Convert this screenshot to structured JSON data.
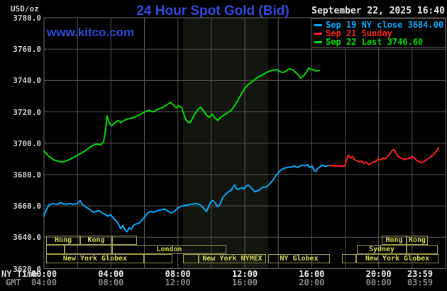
{
  "header": {
    "title": "24 Hour Spot Gold (Bid)",
    "unit_label": "USD/oz",
    "datetime": "September 22, 2025 16:40",
    "watermark": "www.kitco.com"
  },
  "chart_data": {
    "type": "line",
    "title": "24 Hour Spot Gold (Bid)",
    "ny_close": 3684.0,
    "last": 3746.6,
    "x_axis": {
      "label_ny": "NY Time",
      "label_gmt": "GMT",
      "range_hours": [
        0,
        24
      ],
      "ticks": [
        {
          "h": 0,
          "ny": "00:00",
          "gmt": "04:00"
        },
        {
          "h": 4,
          "ny": "04:00",
          "gmt": "08:00"
        },
        {
          "h": 8,
          "ny": "08:00",
          "gmt": "12:00"
        },
        {
          "h": 12,
          "ny": "12:00",
          "gmt": "16:00"
        },
        {
          "h": 16,
          "ny": "16:00",
          "gmt": "20:00"
        },
        {
          "h": 20,
          "ny": "20:00",
          "gmt": "00:00"
        },
        {
          "h": 24,
          "ny": "23:59",
          "gmt": "03:59"
        }
      ]
    },
    "y_axis": {
      "min": 3620,
      "max": 3780,
      "step": 20,
      "grid": true
    },
    "legend_position": "top-right",
    "legend": [
      {
        "label": "Sep 19 NY close 3684.00",
        "color": "#00aaff"
      },
      {
        "label": "Sep 21 Sunday",
        "color": "#ff2020"
      },
      {
        "label": "Sep 22 Last 3746.60",
        "color": "#00dc00"
      }
    ],
    "series": [
      {
        "id": "sep19-ny-close",
        "name": "Sep 19",
        "color": "#00aaff",
        "points": [
          [
            0,
            3653.5
          ],
          [
            0.13,
            3657.5
          ],
          [
            0.3,
            3660.5
          ],
          [
            0.51,
            3661.5
          ],
          [
            0.76,
            3661
          ],
          [
            1.02,
            3662
          ],
          [
            1.27,
            3661
          ],
          [
            1.53,
            3661.5
          ],
          [
            1.78,
            3661
          ],
          [
            1.99,
            3661.5
          ],
          [
            2.16,
            3663.5
          ],
          [
            2.29,
            3661
          ],
          [
            2.46,
            3659.5
          ],
          [
            2.63,
            3658.5
          ],
          [
            2.8,
            3657
          ],
          [
            2.97,
            3656
          ],
          [
            3.14,
            3656.5
          ],
          [
            3.31,
            3657
          ],
          [
            3.48,
            3655.5
          ],
          [
            3.65,
            3654.5
          ],
          [
            3.82,
            3653.5
          ],
          [
            3.99,
            3654.5
          ],
          [
            4.16,
            3652
          ],
          [
            4.32,
            3650.5
          ],
          [
            4.45,
            3648.5
          ],
          [
            4.58,
            3645.5
          ],
          [
            4.71,
            3647.5
          ],
          [
            4.83,
            3645
          ],
          [
            4.96,
            3643.5
          ],
          [
            5.09,
            3646
          ],
          [
            5.22,
            3645
          ],
          [
            5.34,
            3647.5
          ],
          [
            5.51,
            3648.5
          ],
          [
            5.68,
            3649
          ],
          [
            5.85,
            3651
          ],
          [
            6.02,
            3653
          ],
          [
            6.19,
            3655.5
          ],
          [
            6.36,
            3656.5
          ],
          [
            6.57,
            3656
          ],
          [
            6.78,
            3657
          ],
          [
            7,
            3657.5
          ],
          [
            7.21,
            3658
          ],
          [
            7.42,
            3656.5
          ],
          [
            7.63,
            3655.5
          ],
          [
            7.84,
            3657
          ],
          [
            8.06,
            3659
          ],
          [
            8.27,
            3660
          ],
          [
            8.52,
            3660.5
          ],
          [
            8.82,
            3661
          ],
          [
            9.12,
            3661.5
          ],
          [
            9.37,
            3660.5
          ],
          [
            9.58,
            3658
          ],
          [
            9.71,
            3656.5
          ],
          [
            9.84,
            3659.5
          ],
          [
            9.96,
            3662.5
          ],
          [
            10.09,
            3663.5
          ],
          [
            10.22,
            3662
          ],
          [
            10.35,
            3660
          ],
          [
            10.43,
            3659.5
          ],
          [
            10.56,
            3662
          ],
          [
            10.69,
            3665.5
          ],
          [
            10.86,
            3667.5
          ],
          [
            11.02,
            3669
          ],
          [
            11.19,
            3670
          ],
          [
            11.32,
            3672.5
          ],
          [
            11.4,
            3673.3
          ],
          [
            11.49,
            3671
          ],
          [
            11.57,
            3670.5
          ],
          [
            11.7,
            3671
          ],
          [
            11.83,
            3671.5
          ],
          [
            11.96,
            3671
          ],
          [
            12.08,
            3672.5
          ],
          [
            12.21,
            3673.3
          ],
          [
            12.34,
            3672
          ],
          [
            12.47,
            3670.5
          ],
          [
            12.59,
            3669
          ],
          [
            12.72,
            3669.5
          ],
          [
            12.85,
            3670
          ],
          [
            12.97,
            3671
          ],
          [
            13.1,
            3672
          ],
          [
            13.27,
            3672
          ],
          [
            13.44,
            3673.5
          ],
          [
            13.61,
            3675.5
          ],
          [
            13.78,
            3678
          ],
          [
            13.95,
            3680.5
          ],
          [
            14.12,
            3682.5
          ],
          [
            14.33,
            3684
          ],
          [
            14.54,
            3684.5
          ],
          [
            14.76,
            3684.8
          ],
          [
            14.97,
            3685.5
          ],
          [
            15.14,
            3684.5
          ],
          [
            15.31,
            3685.5
          ],
          [
            15.48,
            3686
          ],
          [
            15.61,
            3685.5
          ],
          [
            15.73,
            3686.3
          ],
          [
            15.9,
            3684.5
          ],
          [
            16.03,
            3685.5
          ],
          [
            16.11,
            3683
          ],
          [
            16.24,
            3682
          ],
          [
            16.37,
            3684
          ],
          [
            16.5,
            3685
          ],
          [
            16.62,
            3686
          ],
          [
            16.79,
            3685.3
          ],
          [
            16.92,
            3685.5
          ],
          [
            17.05,
            3685.8
          ]
        ]
      },
      {
        "id": "sep21-sunday",
        "name": "Sep 21",
        "color": "#ff2020",
        "points": [
          [
            17.05,
            3685.8
          ],
          [
            17.3,
            3685.5
          ],
          [
            17.55,
            3685.5
          ],
          [
            17.81,
            3685.3
          ],
          [
            17.98,
            3685.5
          ],
          [
            18.06,
            3689
          ],
          [
            18.19,
            3692.5
          ],
          [
            18.32,
            3690.5
          ],
          [
            18.44,
            3691.5
          ],
          [
            18.57,
            3689.5
          ],
          [
            18.7,
            3688.8
          ],
          [
            18.82,
            3688.2
          ],
          [
            18.99,
            3688.5
          ],
          [
            19.12,
            3687.3
          ],
          [
            19.25,
            3688
          ],
          [
            19.42,
            3686.3
          ],
          [
            19.55,
            3687.2
          ],
          [
            19.67,
            3688
          ],
          [
            19.84,
            3688.5
          ],
          [
            19.97,
            3690
          ],
          [
            20.1,
            3689.3
          ],
          [
            20.27,
            3690.5
          ],
          [
            20.4,
            3690
          ],
          [
            20.53,
            3691.5
          ],
          [
            20.69,
            3693.5
          ],
          [
            20.82,
            3695.5
          ],
          [
            20.91,
            3696
          ],
          [
            21.03,
            3693.8
          ],
          [
            21.16,
            3691.5
          ],
          [
            21.29,
            3690.7
          ],
          [
            21.42,
            3690.2
          ],
          [
            21.58,
            3689.5
          ],
          [
            21.71,
            3690.2
          ],
          [
            21.84,
            3690.2
          ],
          [
            22.01,
            3691.5
          ],
          [
            22.14,
            3690.7
          ],
          [
            22.26,
            3689
          ],
          [
            22.39,
            3688.3
          ],
          [
            22.52,
            3687.6
          ],
          [
            22.65,
            3688
          ],
          [
            22.77,
            3688.5
          ],
          [
            22.9,
            3689.8
          ],
          [
            23.03,
            3690.7
          ],
          [
            23.15,
            3691.6
          ],
          [
            23.28,
            3692.8
          ],
          [
            23.41,
            3694.5
          ],
          [
            23.49,
            3695.5
          ],
          [
            23.58,
            3697.3
          ]
        ]
      },
      {
        "id": "sep22-last",
        "name": "Sep 22",
        "color": "#00dc00",
        "points": [
          [
            0,
            3695
          ],
          [
            0.25,
            3692
          ],
          [
            0.55,
            3689.5
          ],
          [
            0.85,
            3688.5
          ],
          [
            1.1,
            3688
          ],
          [
            1.4,
            3689
          ],
          [
            1.7,
            3690.5
          ],
          [
            2.04,
            3692.5
          ],
          [
            2.37,
            3694.5
          ],
          [
            2.63,
            3696.5
          ],
          [
            2.88,
            3698.5
          ],
          [
            3.14,
            3699.5
          ],
          [
            3.39,
            3699
          ],
          [
            3.56,
            3701
          ],
          [
            3.69,
            3709
          ],
          [
            3.77,
            3717.5
          ],
          [
            3.86,
            3714
          ],
          [
            4.03,
            3711
          ],
          [
            4.24,
            3713
          ],
          [
            4.41,
            3714.5
          ],
          [
            4.58,
            3713
          ],
          [
            4.79,
            3714.5
          ],
          [
            5,
            3715.5
          ],
          [
            5.26,
            3716
          ],
          [
            5.51,
            3717
          ],
          [
            5.77,
            3718.5
          ],
          [
            6.02,
            3720
          ],
          [
            6.28,
            3721
          ],
          [
            6.53,
            3720
          ],
          [
            6.78,
            3721.5
          ],
          [
            7.04,
            3722.5
          ],
          [
            7.29,
            3724
          ],
          [
            7.55,
            3726
          ],
          [
            7.72,
            3724.5
          ],
          [
            7.89,
            3722.5
          ],
          [
            8.06,
            3724
          ],
          [
            8.23,
            3722.5
          ],
          [
            8.35,
            3719
          ],
          [
            8.48,
            3715
          ],
          [
            8.61,
            3713.5
          ],
          [
            8.73,
            3713
          ],
          [
            8.86,
            3715.5
          ],
          [
            9.03,
            3719
          ],
          [
            9.2,
            3721.5
          ],
          [
            9.37,
            3723
          ],
          [
            9.54,
            3720.5
          ],
          [
            9.71,
            3718
          ],
          [
            9.88,
            3716.5
          ],
          [
            10.05,
            3718.5
          ],
          [
            10.22,
            3716
          ],
          [
            10.39,
            3714.5
          ],
          [
            10.56,
            3716.5
          ],
          [
            10.77,
            3718
          ],
          [
            10.98,
            3719.5
          ],
          [
            11.19,
            3721
          ],
          [
            11.4,
            3724
          ],
          [
            11.62,
            3728
          ],
          [
            11.83,
            3732
          ],
          [
            12,
            3735
          ],
          [
            12.21,
            3737.5
          ],
          [
            12.42,
            3739
          ],
          [
            12.63,
            3741
          ],
          [
            12.85,
            3742.5
          ],
          [
            13.06,
            3743.5
          ],
          [
            13.27,
            3745
          ],
          [
            13.48,
            3746
          ],
          [
            13.7,
            3746.5
          ],
          [
            13.91,
            3747
          ],
          [
            14.12,
            3745.5
          ],
          [
            14.33,
            3745
          ],
          [
            14.5,
            3746.5
          ],
          [
            14.67,
            3747.5
          ],
          [
            14.84,
            3746.8
          ],
          [
            15.01,
            3745.5
          ],
          [
            15.18,
            3743.6
          ],
          [
            15.35,
            3741.5
          ],
          [
            15.52,
            3743
          ],
          [
            15.69,
            3745.5
          ],
          [
            15.82,
            3748
          ],
          [
            15.94,
            3747
          ],
          [
            16.11,
            3746.8
          ],
          [
            16.28,
            3746
          ],
          [
            16.45,
            3746.6
          ]
        ]
      }
    ],
    "nymex_band": {
      "start_h": 8.31,
      "end_h": 13.4
    },
    "sessions": {
      "rows": [
        [
          {
            "label": "Hong",
            "h1": 0.13,
            "h2": 2.16
          },
          {
            "label": "Kong",
            "h1": 2.16,
            "h2": 4.07
          },
          {
            "label": "",
            "h1": 4.07,
            "h2": 5.55
          },
          {
            "label": "Hong",
            "h1": 20.18,
            "h2": 21.67
          },
          {
            "label": "Kong",
            "h1": 21.67,
            "h2": 22.94
          }
        ],
        [
          {
            "label": "",
            "h1": 0.13,
            "h2": 1.23
          },
          {
            "label": "",
            "h1": 1.23,
            "h2": 4.07
          },
          {
            "label": "London",
            "h1": 4.07,
            "h2": 10.9
          },
          {
            "label": "Sydney",
            "h1": 18.7,
            "h2": 21.67
          },
          {
            "label": "",
            "h1": 21.67,
            "h2": 23.53
          }
        ],
        [
          {
            "label": "New York Globex",
            "h1": 0.13,
            "h2": 5.98
          },
          {
            "label": "",
            "h1": 5.98,
            "h2": 7.67
          },
          {
            "label": "",
            "h1": 8.31,
            "h2": 9.24
          },
          {
            "label": "New York NYMEX",
            "h1": 9.24,
            "h2": 13.27
          },
          {
            "label": "NY Globex",
            "h1": 13.4,
            "h2": 17.09
          },
          {
            "label": "",
            "h1": 17.81,
            "h2": 18.66
          },
          {
            "label": "New York Globex",
            "h1": 18.66,
            "h2": 23.58
          }
        ]
      ]
    },
    "colors": {
      "background": "#000000",
      "grid": "#575757",
      "border": "#6a6a6a",
      "band": "#11150d",
      "title_blue": "#2f4ce0",
      "session_border": "#9a9a50",
      "session_text": "#d8d85a"
    }
  }
}
